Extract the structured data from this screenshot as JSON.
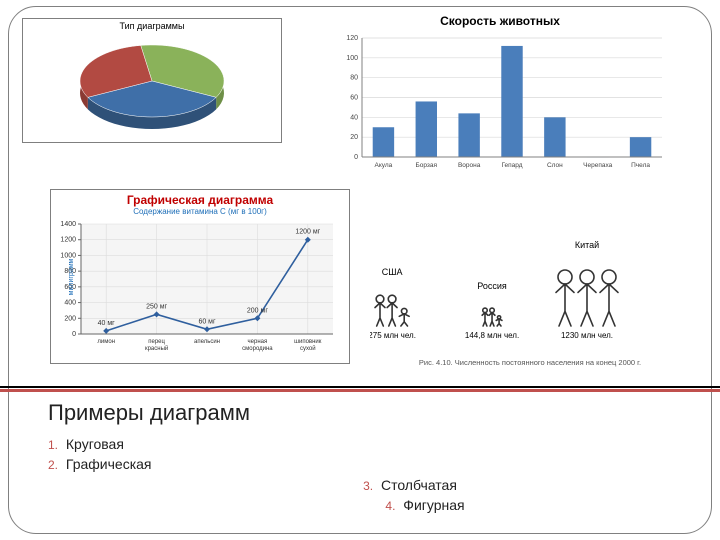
{
  "pie": {
    "type": "pie",
    "title": "Тип диаграммы",
    "background_color": "#ffffff",
    "border_color": "#7f7f7f",
    "slices": [
      {
        "value": 35,
        "color": "#8ab25a",
        "side_color": "#6e8f47"
      },
      {
        "value": 35,
        "color": "#3f6fa8",
        "side_color": "#2f5178"
      },
      {
        "value": 30,
        "color": "#b24a42",
        "side_color": "#8a3a33"
      }
    ]
  },
  "bar": {
    "type": "bar",
    "title": "Скорость животных",
    "categories": [
      "Акула",
      "Борзая",
      "Ворона",
      "Гепард",
      "Слон",
      "Черепаха",
      "Пчела"
    ],
    "values": [
      30,
      56,
      44,
      112,
      40,
      0.5,
      20
    ],
    "bar_color": "#4a7ebb",
    "ylim": [
      0,
      120
    ],
    "ytick_step": 20,
    "grid_color": "#d9d9d9",
    "axis_color": "#808080",
    "label_fontsize": 7,
    "background_color": "#ffffff",
    "bar_width": 0.5
  },
  "line": {
    "type": "line",
    "title": "Графическая диаграмма",
    "subtitle": "Содержание витамина С (мг в 100г)",
    "y_axis_label": "милиграмм",
    "categories": [
      "лимон",
      "перец красный",
      "апельсин",
      "черная смородина",
      "шиповник сухой"
    ],
    "values": [
      40,
      250,
      60,
      200,
      1200
    ],
    "point_labels": [
      "40 мг",
      "250 мг",
      "60 мг",
      "200 мг",
      "1200 мг"
    ],
    "line_color": "#2f5f9e",
    "marker_color": "#2f5f9e",
    "marker_style": "diamond",
    "ylim": [
      0,
      1400
    ],
    "ytick_step": 200,
    "grid_color": "#dcdcdc",
    "axis_color": "#666666",
    "background_color": "#f5f5f5",
    "border_color": "#7f7f7f"
  },
  "pictogram": {
    "type": "infographic",
    "caption": "Рис. 4.10. Численность постоянного населения на конец 2000 г.",
    "outline_color": "#333333",
    "groups": [
      {
        "label": "США",
        "value_text": "275 млн чел.",
        "scale": 0.55,
        "x": 10,
        "figures": 3
      },
      {
        "label": "Россия",
        "value_text": "144,8 млн чел.",
        "scale": 0.32,
        "x": 115,
        "figures": 3
      },
      {
        "label": "Китай",
        "value_text": "1230 млн чел.",
        "scale": 1.0,
        "x": 195,
        "figures": 3
      }
    ]
  },
  "separator": {
    "color_top": "#000000",
    "color_bottom": "#c0504d"
  },
  "main_title": "Примеры диаграмм",
  "list_accent_color": "#c0504d",
  "diagram_types": [
    {
      "num": "1.",
      "label": "Круговая"
    },
    {
      "num": "2.",
      "label": "Графическая"
    },
    {
      "num": "3.",
      "label": " Столбчатая"
    },
    {
      "num": "4.",
      "label": "Фигурная"
    }
  ]
}
